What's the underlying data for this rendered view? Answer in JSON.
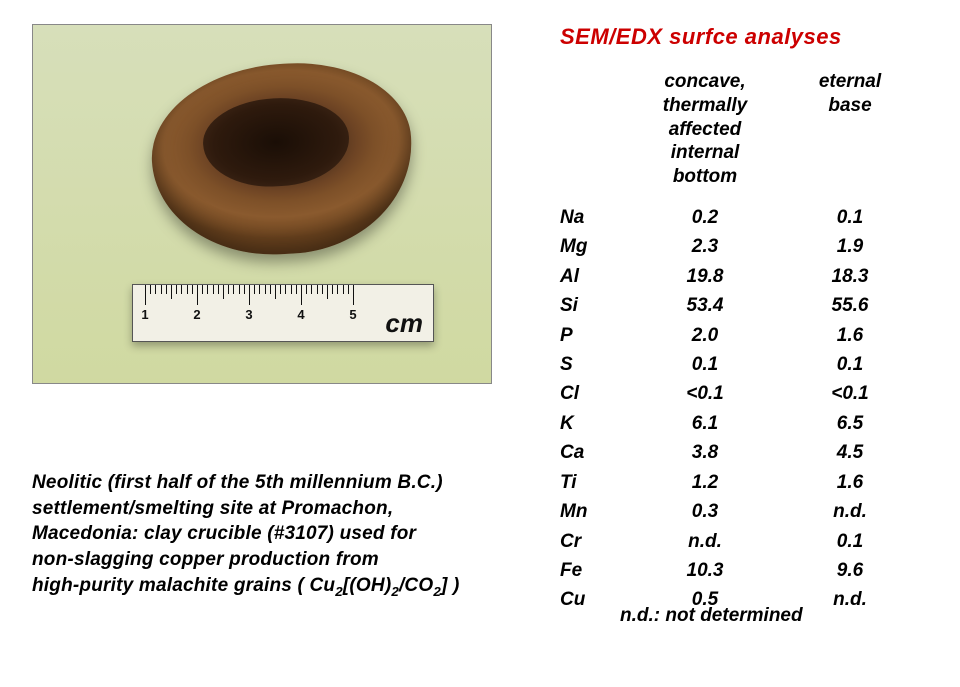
{
  "image": {
    "ruler_major_ticks": [
      1,
      2,
      3,
      4,
      5
    ],
    "ruler_unit": "cm",
    "background_color": "#d7dfba",
    "crucible_color": "#6e4424"
  },
  "caption": {
    "line1_a": "Neolitic (first half of the 5th millennium B.C.)",
    "line2": "settlement/smelting site at Promachon,",
    "line3": "Macedonia: clay crucible (#3107) used for",
    "line4_pre": " non-slagging copper production from",
    "line5_pre": "high-purity malachite grains ( Cu",
    "line5_sub1": "2",
    "line5_mid": "[(OH)",
    "line5_sub2": "2",
    "line5_mid2": "/CO",
    "line5_sub3": "2",
    "line5_end": "] )"
  },
  "right": {
    "title": "SEM/EDX surfce analyses",
    "title_color": "#cc0000",
    "header_col2": "concave,\nthermally\naffected\ninternal\nbottom",
    "header_col3": "eternal\nbase",
    "rows": [
      {
        "el": "Na",
        "v1": "0.2",
        "v2": "0.1"
      },
      {
        "el": "Mg",
        "v1": "2.3",
        "v2": "1.9"
      },
      {
        "el": "Al",
        "v1": "19.8",
        "v2": "18.3"
      },
      {
        "el": "Si",
        "v1": "53.4",
        "v2": "55.6"
      },
      {
        "el": "P",
        "v1": "2.0",
        "v2": "1.6"
      },
      {
        "el": "S",
        "v1": "0.1",
        "v2": "0.1"
      },
      {
        "el": "Cl",
        "v1": "<0.1",
        "v2": "<0.1"
      },
      {
        "el": "K",
        "v1": "6.1",
        "v2": "6.5"
      },
      {
        "el": "Ca",
        "v1": "3.8",
        "v2": "4.5"
      },
      {
        "el": "Ti",
        "v1": "1.2",
        "v2": "1.6"
      },
      {
        "el": "Mn",
        "v1": "0.3",
        "v2": "n.d."
      },
      {
        "el": "Cr",
        "v1": "n.d.",
        "v2": "0.1"
      },
      {
        "el": "Fe",
        "v1": "10.3",
        "v2": "9.6"
      },
      {
        "el": "Cu",
        "v1": "0.5",
        "v2": "n.d."
      }
    ],
    "footnote": "n.d.: not determined"
  },
  "typography": {
    "body_fontsize": 19,
    "title_fontsize": 22,
    "font_weight": "bold",
    "font_style": "italic",
    "text_color": "#000000",
    "background_color": "#ffffff"
  }
}
